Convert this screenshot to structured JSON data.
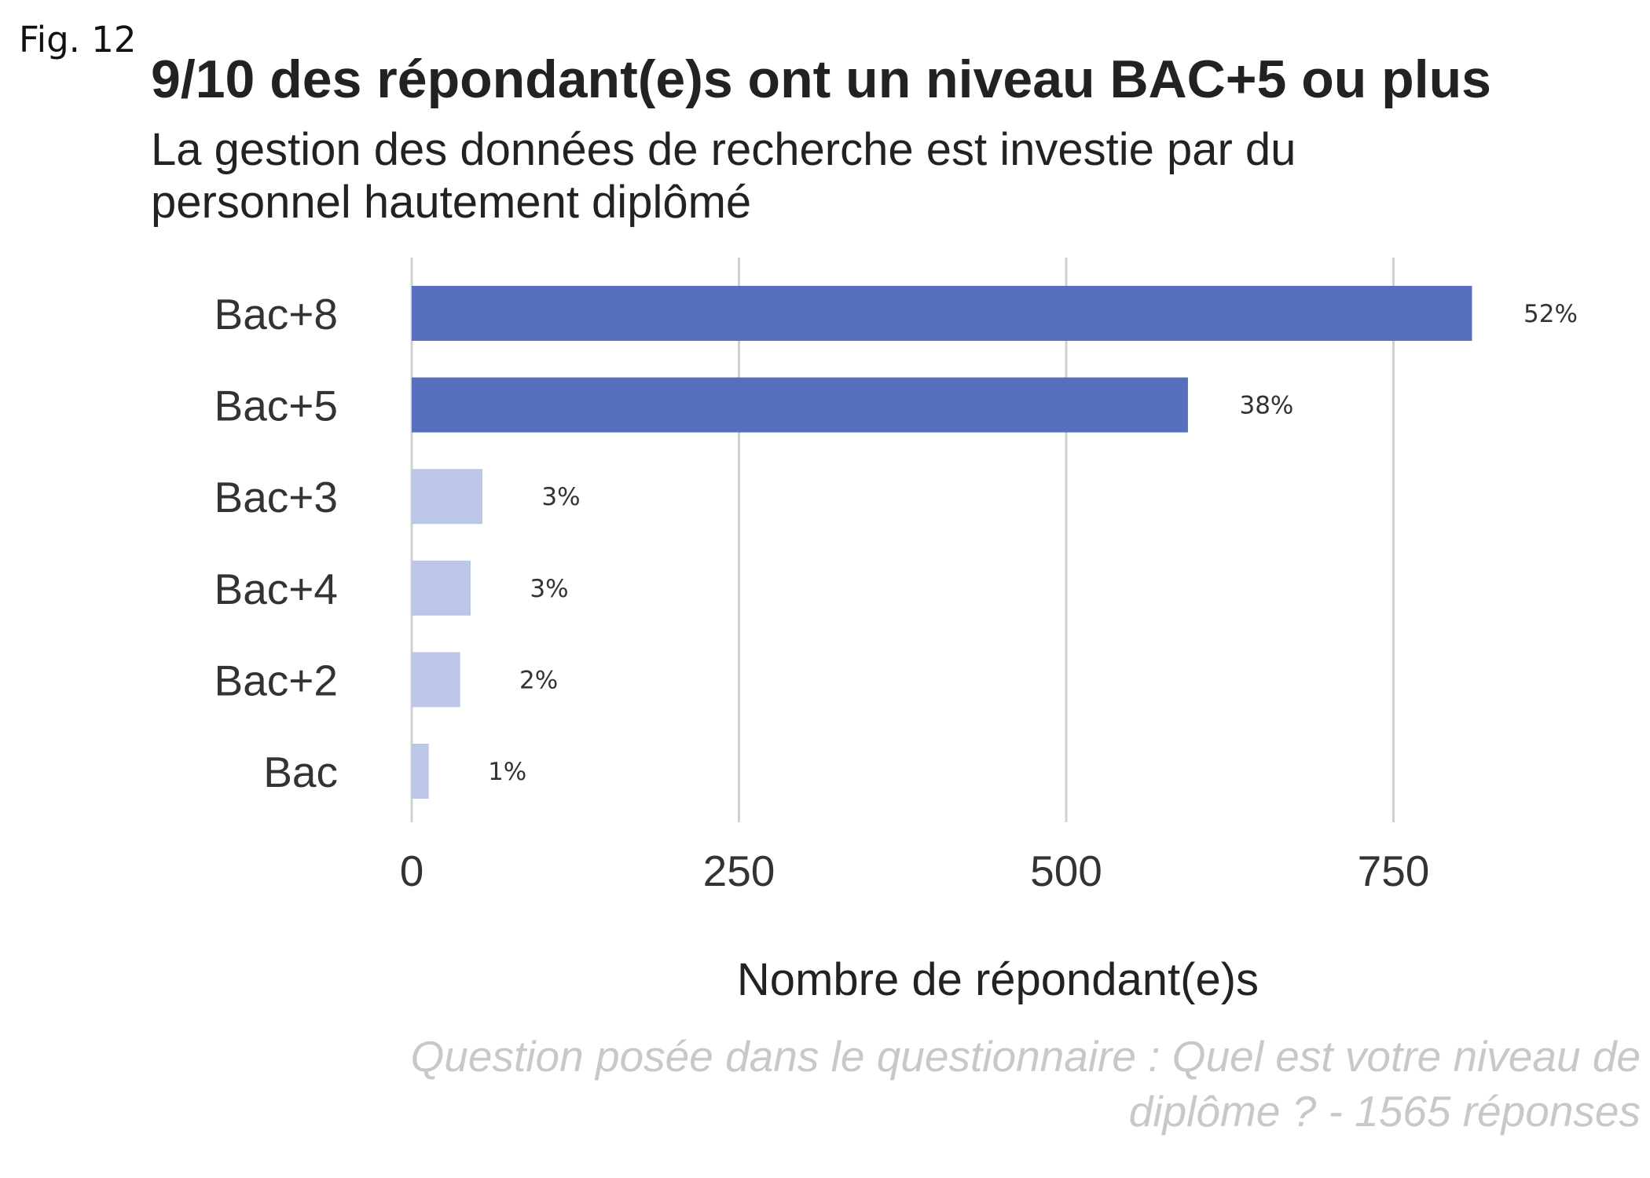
{
  "figure_label": "Fig. 12",
  "chart_data": {
    "type": "bar",
    "orientation": "horizontal",
    "title": "9/10 des répondant(e)s ont un niveau BAC+5 ou plus",
    "subtitle_lines": [
      "La gestion des données de recherche est investie par du",
      "personnel hautement diplômé"
    ],
    "xlabel": "Nombre de répondant(e)s",
    "ylabel": "",
    "xlim": [
      0,
      880
    ],
    "x_ticks": [
      0,
      250,
      500,
      750
    ],
    "grid": true,
    "categories": [
      "Bac+8",
      "Bac+5",
      "Bac+3",
      "Bac+4",
      "Bac+2",
      "Bac"
    ],
    "values": [
      810,
      593,
      54,
      45,
      37,
      13
    ],
    "value_labels": [
      "52%",
      "38%",
      "3%",
      "3%",
      "2%",
      "1%"
    ],
    "highlighted": [
      true,
      true,
      false,
      false,
      false,
      false
    ],
    "colors": {
      "highlight": "#5670bd",
      "muted": "#bcc6e7"
    },
    "caption_lines": [
      "Question posée dans le questionnaire : Quel est votre niveau de",
      "diplôme ? - 1565 réponses"
    ]
  }
}
